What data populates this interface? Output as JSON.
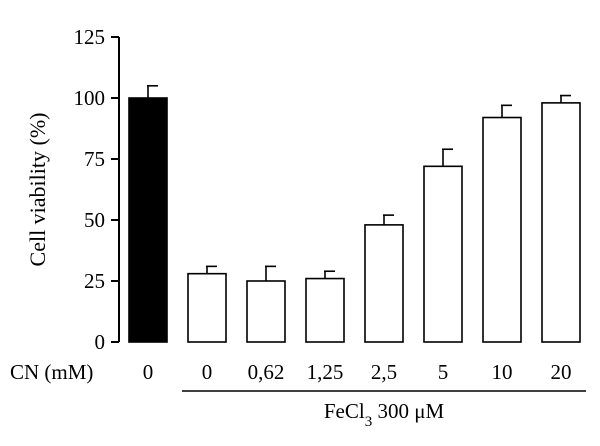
{
  "chart_data": {
    "type": "bar",
    "ylabel": "Cell viability (%)",
    "ylim": [
      0,
      125
    ],
    "yticks": [
      0,
      25,
      50,
      75,
      100,
      125
    ],
    "x_row_label": "CN (mM)",
    "categories": [
      "0",
      "0",
      "0,62",
      "1,25",
      "2,5",
      "5",
      "10",
      "20"
    ],
    "values": [
      100,
      28,
      25,
      26,
      48,
      72,
      92,
      98
    ],
    "errors": [
      5,
      3,
      6,
      3,
      4,
      7,
      5,
      3
    ],
    "bar_fills": [
      "#000000",
      "#ffffff",
      "#ffffff",
      "#ffffff",
      "#ffffff",
      "#ffffff",
      "#ffffff",
      "#ffffff"
    ],
    "group": {
      "label_main": "FeCl",
      "label_sub": "3",
      "label_rest": " 300 μM",
      "from_category": 1,
      "to_category": 7
    },
    "grid": false
  }
}
